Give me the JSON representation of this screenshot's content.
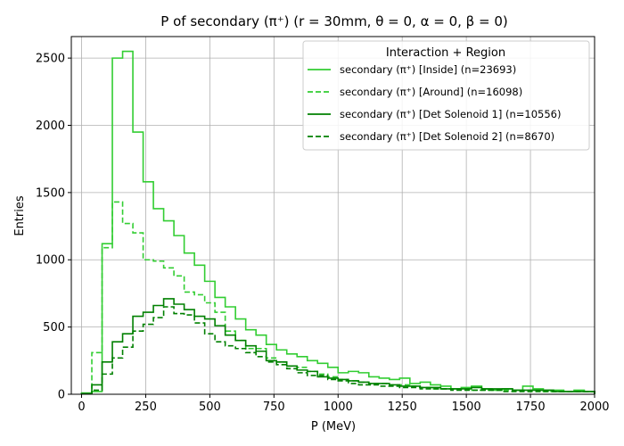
{
  "chart_data": {
    "type": "histogram",
    "title": "P of secondary (π⁺) (r = 30mm, θ = 0, α = 0, β = 0)",
    "xlabel": "P (MeV)",
    "ylabel": "Entries",
    "xlim": [
      -40,
      2000
    ],
    "ylim": [
      0,
      2660
    ],
    "grid": true,
    "x_ticks": [
      0,
      250,
      500,
      750,
      1000,
      1250,
      1500,
      1750,
      2000
    ],
    "y_ticks": [
      0,
      500,
      1000,
      1500,
      2000,
      2500
    ],
    "legend": {
      "title": "Interaction + Region",
      "placement": "top-right"
    },
    "bin_edges": [
      0,
      40,
      80,
      120,
      160,
      200,
      240,
      280,
      320,
      360,
      400,
      440,
      480,
      520,
      560,
      600,
      640,
      680,
      720,
      760,
      800,
      840,
      880,
      920,
      960,
      1000,
      1040,
      1080,
      1120,
      1160,
      1200,
      1240,
      1280,
      1320,
      1360,
      1400,
      1440,
      1480,
      1520,
      1560,
      1600,
      1640,
      1680,
      1720,
      1760,
      1800,
      1840,
      1880,
      1920,
      1960,
      2000
    ],
    "series": [
      {
        "name": "secondary (π⁺) [Inside] (n=23693)",
        "color": "#32cd32",
        "linestyle": "solid",
        "values": [
          10,
          20,
          1120,
          2500,
          2550,
          1950,
          1580,
          1380,
          1290,
          1180,
          1050,
          960,
          840,
          720,
          650,
          560,
          480,
          440,
          370,
          330,
          300,
          280,
          250,
          230,
          200,
          160,
          170,
          160,
          130,
          120,
          110,
          120,
          80,
          90,
          70,
          60,
          40,
          50,
          60,
          40,
          30,
          40,
          30,
          60,
          40,
          30,
          30,
          20,
          30,
          20
        ]
      },
      {
        "name": "secondary (π⁺) [Around] (n=16098)",
        "color": "#32cd32",
        "linestyle": "dashed",
        "values": [
          5,
          310,
          1090,
          1430,
          1270,
          1200,
          1000,
          990,
          940,
          880,
          760,
          740,
          680,
          610,
          470,
          400,
          340,
          340,
          270,
          240,
          210,
          200,
          170,
          150,
          130,
          110,
          100,
          90,
          80,
          80,
          70,
          70,
          60,
          50,
          40,
          40,
          40,
          40,
          30,
          30,
          30,
          30,
          30,
          30,
          30,
          20,
          20,
          20,
          20,
          20
        ]
      },
      {
        "name": "secondary (π⁺) [Det Solenoid 1] (n=10556)",
        "color": "#008000",
        "linestyle": "solid",
        "values": [
          5,
          70,
          240,
          390,
          450,
          580,
          610,
          660,
          710,
          670,
          630,
          580,
          560,
          510,
          440,
          400,
          360,
          320,
          250,
          240,
          210,
          180,
          170,
          130,
          120,
          110,
          100,
          90,
          80,
          80,
          70,
          60,
          60,
          50,
          50,
          40,
          40,
          40,
          50,
          40,
          40,
          40,
          30,
          30,
          30,
          30,
          20,
          20,
          20,
          20
        ]
      },
      {
        "name": "secondary (π⁺) [Det Solenoid 2] (n=8670)",
        "color": "#008000",
        "linestyle": "dashed",
        "values": [
          5,
          30,
          150,
          270,
          350,
          470,
          520,
          570,
          650,
          600,
          590,
          530,
          450,
          390,
          360,
          340,
          310,
          280,
          240,
          220,
          190,
          160,
          140,
          140,
          110,
          100,
          80,
          70,
          70,
          60,
          60,
          50,
          50,
          40,
          40,
          40,
          30,
          30,
          30,
          30,
          30,
          20,
          20,
          20,
          20,
          20,
          20,
          20,
          20,
          20
        ]
      }
    ]
  }
}
